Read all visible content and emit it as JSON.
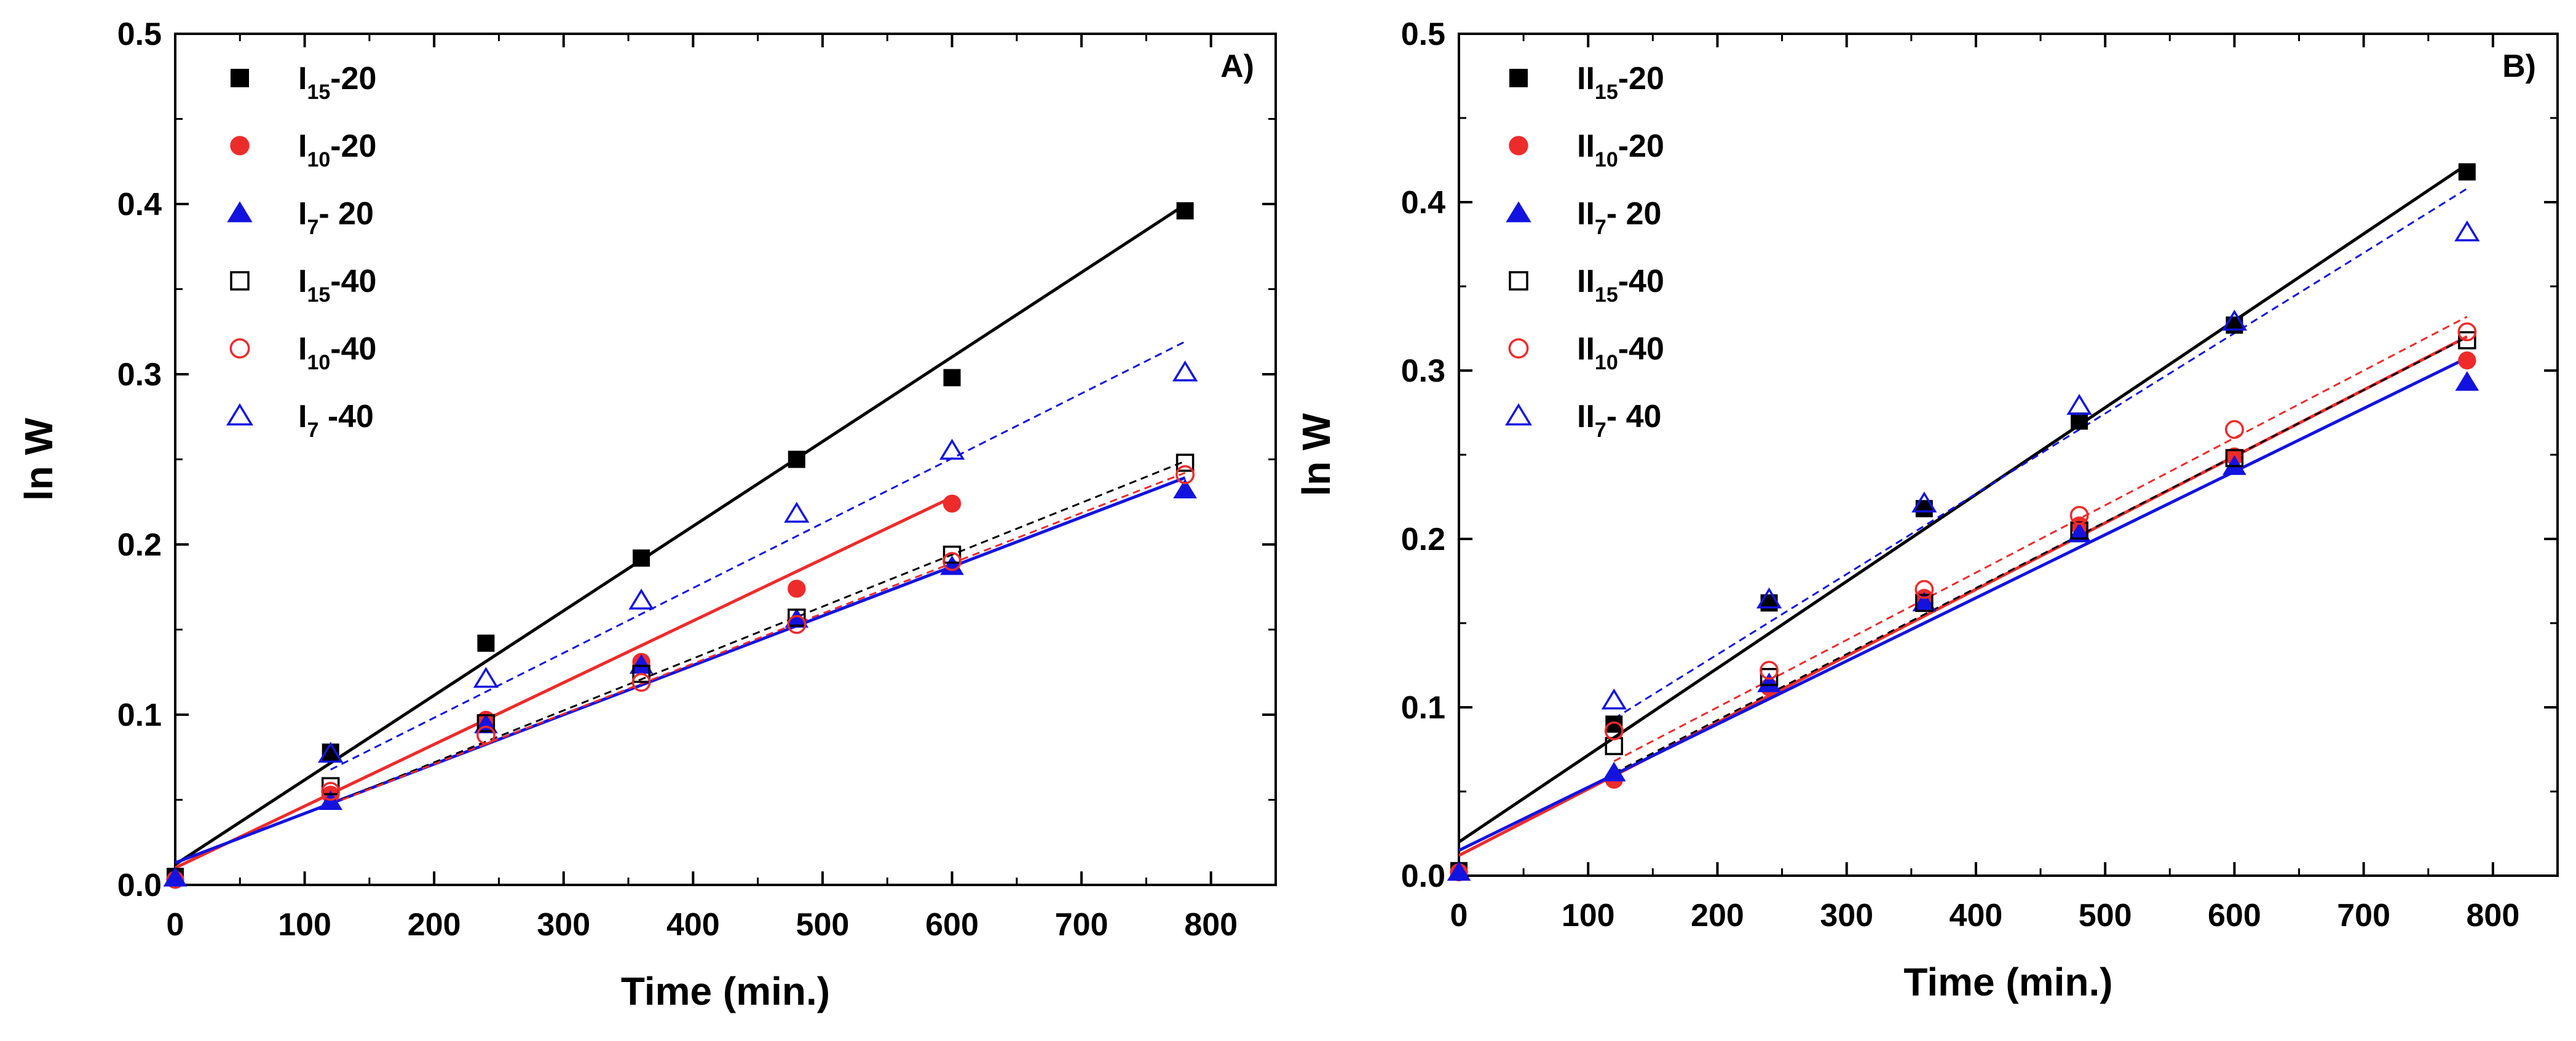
{
  "chart_data": [
    {
      "type": "scatter",
      "panel_label": "A)",
      "xlabel": "Time (min.)",
      "ylabel": "ln W",
      "xlim": [
        0,
        850
      ],
      "ylim": [
        0,
        0.5
      ],
      "xticks": [
        0,
        100,
        200,
        300,
        400,
        500,
        600,
        700,
        800
      ],
      "yticks": [
        0.0,
        0.1,
        0.2,
        0.3,
        0.4,
        0.5
      ],
      "xtick_labels": [
        "0",
        "100",
        "200",
        "300",
        "400",
        "500",
        "600",
        "700",
        "800"
      ],
      "ytick_labels": [
        "0.0",
        "0.1",
        "0.2",
        "0.3",
        "0.4",
        "0.5"
      ],
      "legend_position": "top-left",
      "series": [
        {
          "name": "I15-20",
          "label_main": "I",
          "label_sub": "15",
          "label_suffix": "-20",
          "color": "#000000",
          "marker": "square",
          "filled": true,
          "fit_style": "solid",
          "x": [
            0,
            120,
            240,
            360,
            480,
            600,
            780
          ],
          "y": [
            0.005,
            0.078,
            0.142,
            0.192,
            0.25,
            0.298,
            0.396
          ],
          "fit": [
            0.012,
            0.0004969
          ]
        },
        {
          "name": "I10-20",
          "label_main": "I",
          "label_sub": "10",
          "label_suffix": "-20",
          "color": "#ee2b2b",
          "marker": "circle",
          "filled": true,
          "fit_style": "solid",
          "x": [
            0,
            120,
            240,
            360,
            480,
            600
          ],
          "y": [
            0.003,
            0.053,
            0.097,
            0.131,
            0.174,
            0.224
          ],
          "fit": [
            0.01,
            0.0003628
          ]
        },
        {
          "name": "I7- 20",
          "label_main": "I",
          "label_sub": "7",
          "label_suffix": "- 20",
          "color": "#1313e0",
          "marker": "triangle",
          "filled": true,
          "fit_style": "solid",
          "x": [
            0,
            120,
            240,
            360,
            480,
            600,
            780
          ],
          "y": [
            0.004,
            0.049,
            0.094,
            0.129,
            0.156,
            0.187,
            0.232
          ],
          "fit": [
            0.013,
            0.00029
          ]
        },
        {
          "name": "I15-40",
          "label_main": "I",
          "label_sub": "15",
          "label_suffix": "-40",
          "color": "#000000",
          "marker": "square",
          "filled": false,
          "fit_style": "dashed",
          "x": [
            120,
            240,
            360,
            480,
            600,
            780
          ],
          "y": [
            0.058,
            0.095,
            0.124,
            0.157,
            0.194,
            0.248
          ],
          "fit": [
            0.011,
            0.000305
          ]
        },
        {
          "name": "I10-40",
          "label_main": "I",
          "label_sub": "10",
          "label_suffix": "-40",
          "color": "#ee2b2b",
          "marker": "circle",
          "filled": false,
          "fit_style": "dashed",
          "x": [
            120,
            240,
            360,
            480,
            600,
            780
          ],
          "y": [
            0.055,
            0.088,
            0.119,
            0.153,
            0.19,
            0.241
          ],
          "fit": [
            0.012,
            0.000295
          ]
        },
        {
          "name": "I7 -40",
          "label_main": "I",
          "label_sub": "7",
          "label_suffix": " -40",
          "color": "#1313e0",
          "marker": "triangle",
          "filled": false,
          "fit_style": "dashed",
          "x": [
            120,
            240,
            360,
            480,
            600,
            780
          ],
          "y": [
            0.077,
            0.121,
            0.167,
            0.218,
            0.255,
            0.301
          ],
          "fit": [
            0.022,
            0.000381
          ]
        }
      ]
    },
    {
      "type": "scatter",
      "panel_label": "B)",
      "xlabel": "Time (min.)",
      "ylabel": "ln W",
      "xlim": [
        0,
        850
      ],
      "ylim": [
        0,
        0.5
      ],
      "xticks": [
        0,
        100,
        200,
        300,
        400,
        500,
        600,
        700,
        800
      ],
      "yticks": [
        0.0,
        0.1,
        0.2,
        0.3,
        0.4,
        0.5
      ],
      "xtick_labels": [
        "0",
        "100",
        "200",
        "300",
        "400",
        "500",
        "600",
        "700",
        "800"
      ],
      "ytick_labels": [
        "0.0",
        "0.1",
        "0.2",
        "0.3",
        "0.4",
        "0.5"
      ],
      "legend_position": "top-left",
      "series": [
        {
          "name": "II15-20",
          "label_main": "II",
          "label_sub": "15",
          "label_suffix": "-20",
          "color": "#000000",
          "marker": "square",
          "filled": true,
          "fit_style": "solid",
          "x": [
            0,
            120,
            240,
            360,
            480,
            600,
            780
          ],
          "y": [
            0.003,
            0.09,
            0.162,
            0.218,
            0.27,
            0.327,
            0.418
          ],
          "fit": [
            0.02,
            0.000516
          ]
        },
        {
          "name": "II10-20",
          "label_main": "II",
          "label_sub": "10",
          "label_suffix": "-20",
          "color": "#ee2b2b",
          "marker": "circle",
          "filled": true,
          "fit_style": "solid",
          "x": [
            0,
            120,
            240,
            360,
            480,
            600,
            780
          ],
          "y": [
            0.002,
            0.057,
            0.112,
            0.165,
            0.208,
            0.249,
            0.306
          ],
          "fit": [
            0.012,
            0.000395
          ]
        },
        {
          "name": "II7- 20",
          "label_main": "II",
          "label_sub": "7",
          "label_suffix": "- 20",
          "color": "#1313e0",
          "marker": "triangle",
          "filled": true,
          "fit_style": "solid",
          "x": [
            0,
            120,
            240,
            360,
            480,
            600,
            780
          ],
          "y": [
            0.002,
            0.061,
            0.114,
            0.162,
            0.203,
            0.243,
            0.293
          ],
          "fit": [
            0.015,
            0.000375
          ]
        },
        {
          "name": "II15-40",
          "label_main": "II",
          "label_sub": "15",
          "label_suffix": "-40",
          "color": "#000000",
          "marker": "square",
          "filled": false,
          "fit_style": "dashed",
          "x": [
            120,
            240,
            360,
            480,
            600,
            780
          ],
          "y": [
            0.077,
            0.118,
            0.162,
            0.205,
            0.248,
            0.318
          ],
          "fit": [
            0.014,
            0.000392
          ]
        },
        {
          "name": "II10-40",
          "label_main": "II",
          "label_sub": "10",
          "label_suffix": "-40",
          "color": "#ee2b2b",
          "marker": "circle",
          "filled": false,
          "fit_style": "dashed",
          "x": [
            120,
            240,
            360,
            480,
            600,
            780
          ],
          "y": [
            0.086,
            0.122,
            0.17,
            0.214,
            0.265,
            0.323
          ],
          "fit": [
            0.02,
            0.0004
          ]
        },
        {
          "name": "II7- 40",
          "label_main": "II",
          "label_sub": "7",
          "label_suffix": "- 40",
          "color": "#1313e0",
          "marker": "triangle",
          "filled": false,
          "fit_style": "dashed",
          "x": [
            120,
            240,
            360,
            480,
            600,
            780
          ],
          "y": [
            0.104,
            0.164,
            0.221,
            0.279,
            0.329,
            0.382
          ],
          "fit": [
            0.036,
            0.000477
          ]
        }
      ]
    }
  ]
}
